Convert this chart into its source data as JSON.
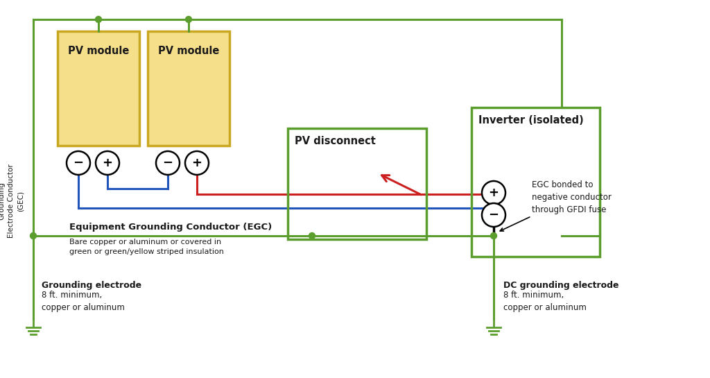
{
  "bg_color": "#ffffff",
  "green": "#5c9e2e",
  "red": "#cc2020",
  "blue": "#2255bb",
  "pv_fill": "#f5df8a",
  "pv_border": "#c8a820",
  "text_dark": "#1a1a1a",
  "pv_module_label": "PV module",
  "pv_disconnect_label": "PV disconnect",
  "inverter_label": "Inverter (isolated)",
  "egc_label": "Equipment Grounding Conductor (EGC)",
  "egc_sub": "Bare copper or aluminum or covered in\ngreen or green/yellow striped insulation",
  "ge_label": "Grounding electrode",
  "ge_sub": "8 ft. minimum,\ncopper or aluminum",
  "dc_ge_label": "DC grounding electrode",
  "dc_ge_sub": "8 ft. minimum,\ncopper or aluminum",
  "gec_label": "Grounding\nElectrode Conductor\n(GEC)",
  "ecg_bond_label": "EGC bonded to\nnegative conductor\nthrough GFDI fuse"
}
